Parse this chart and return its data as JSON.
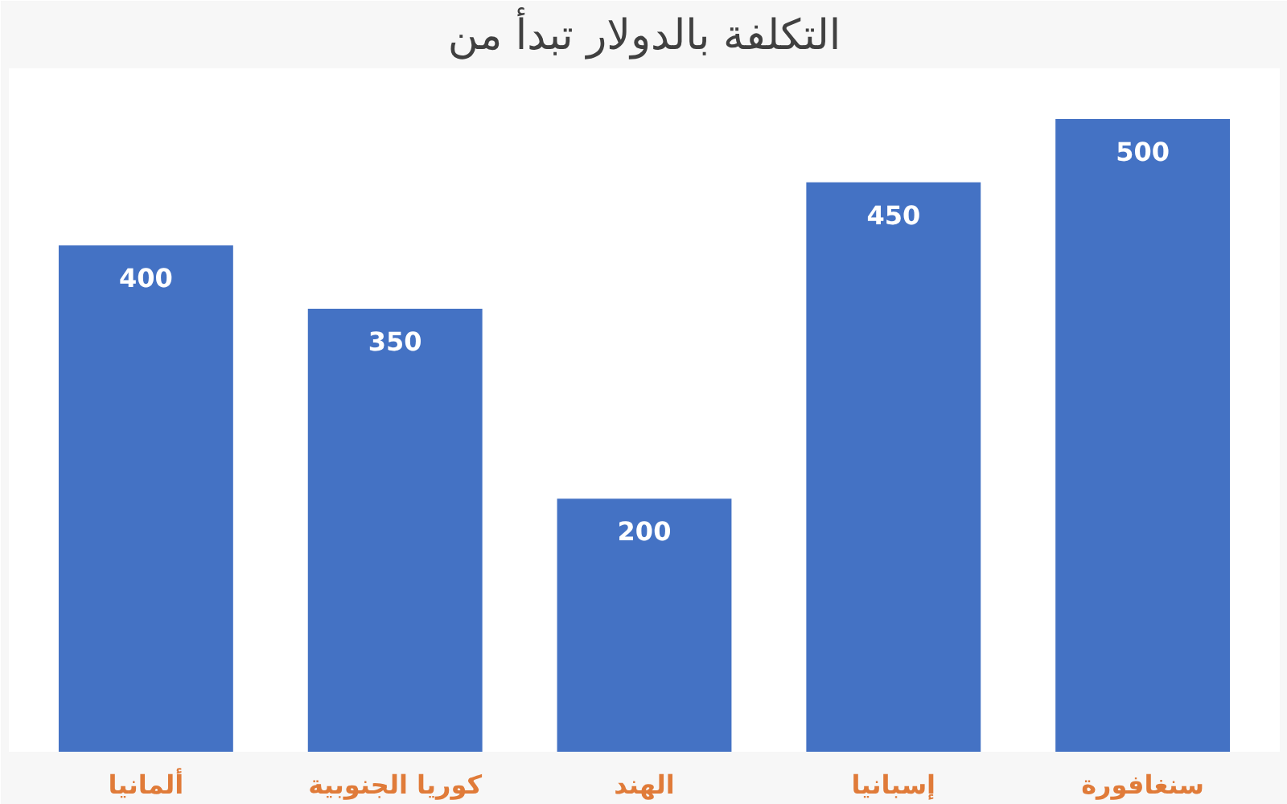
{
  "chart_data": {
    "type": "bar",
    "title": "التكلفة بالدولار تبدأ من",
    "categories": [
      "ألمانيا",
      "كوريا الجنوبية",
      "الهند",
      "إسبانيا",
      "سنغافورة"
    ],
    "values": [
      400,
      350,
      200,
      450,
      500
    ],
    "color": "#4472c4",
    "data_labels": true,
    "grid": false
  }
}
